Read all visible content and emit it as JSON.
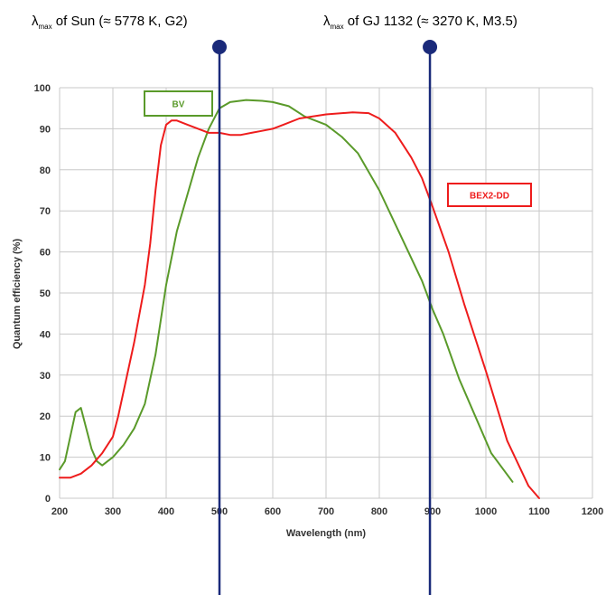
{
  "chart_data": {
    "type": "line",
    "xlabel": "Wavelength (nm)",
    "ylabel": "Quantum efficiency (%)",
    "xlim": [
      200,
      1200
    ],
    "ylim": [
      0,
      100
    ],
    "xticks": [
      200,
      300,
      400,
      500,
      600,
      700,
      800,
      900,
      1000,
      1100,
      1200
    ],
    "yticks": [
      0,
      10,
      20,
      30,
      40,
      50,
      60,
      70,
      80,
      90,
      100
    ],
    "grid": true,
    "series": [
      {
        "name": "BV",
        "color": "#5a9a2a",
        "x": [
          200,
          210,
          220,
          230,
          240,
          250,
          260,
          270,
          280,
          290,
          300,
          320,
          340,
          360,
          380,
          400,
          420,
          440,
          460,
          480,
          500,
          520,
          550,
          580,
          600,
          630,
          660,
          700,
          730,
          760,
          800,
          840,
          880,
          900,
          920,
          950,
          980,
          1010,
          1050
        ],
        "y": [
          7,
          9,
          15,
          21,
          22,
          17,
          12,
          9,
          8,
          9,
          10,
          13,
          17,
          23,
          35,
          52,
          65,
          74,
          83,
          90,
          95,
          96.5,
          97,
          96.8,
          96.5,
          95.5,
          93,
          91,
          88,
          84,
          75,
          64,
          53,
          46,
          40,
          29,
          20,
          11,
          4
        ]
      },
      {
        "name": "BEX2-DD",
        "color": "#ee1c1c",
        "x": [
          200,
          220,
          240,
          260,
          280,
          300,
          310,
          320,
          340,
          360,
          370,
          380,
          390,
          400,
          410,
          420,
          440,
          460,
          480,
          500,
          520,
          540,
          560,
          580,
          600,
          620,
          650,
          700,
          750,
          780,
          800,
          830,
          860,
          880,
          900,
          930,
          960,
          1000,
          1040,
          1080,
          1100
        ],
        "y": [
          5,
          5,
          6,
          8,
          11,
          15,
          20,
          26,
          38,
          52,
          62,
          75,
          86,
          91,
          92,
          92,
          91,
          90,
          89,
          89,
          88.5,
          88.5,
          89,
          89.5,
          90,
          91,
          92.5,
          93.5,
          94,
          93.8,
          92.5,
          89,
          83,
          78,
          71,
          60,
          47,
          31,
          14,
          3,
          0
        ]
      }
    ],
    "legend": [
      {
        "label": "BV",
        "color": "#5a9a2a",
        "placement": "top-left"
      },
      {
        "label": "BEX2-DD",
        "color": "#ee1c1c",
        "placement": "right"
      }
    ],
    "markers": [
      {
        "x": 500,
        "symbol": "λ",
        "sub": "max",
        "label": " of Sun (≈ 5778 K, G2)",
        "color": "#1a2a7a"
      },
      {
        "x": 895,
        "symbol": "λ",
        "sub": "max",
        "label": " of GJ 1132 (≈ 3270 K, M3.5)",
        "color": "#1a2a7a"
      }
    ]
  }
}
